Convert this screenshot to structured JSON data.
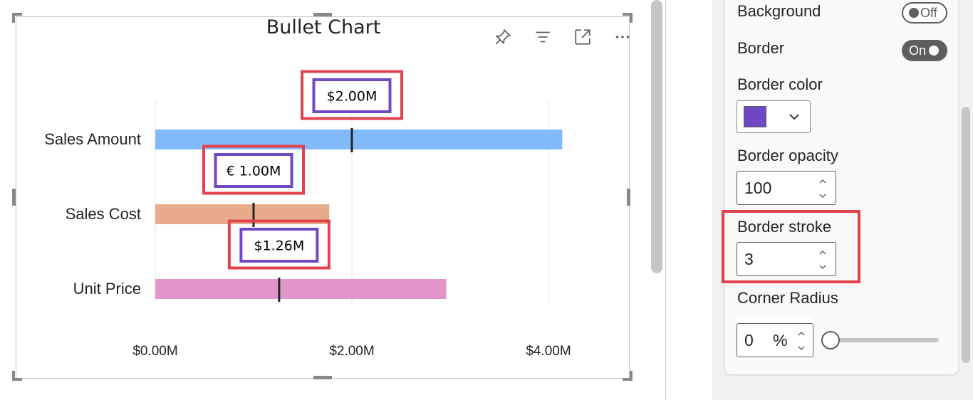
{
  "visual": {
    "title": "Bullet Chart",
    "header_icons": [
      {
        "name": "pin-icon"
      },
      {
        "name": "filter-icon"
      },
      {
        "name": "focus-mode-icon"
      },
      {
        "name": "more-options-icon"
      }
    ]
  },
  "chart_data": {
    "type": "bar",
    "orientation": "horizontal",
    "categories": [
      "Sales Amount",
      "Sales Cost",
      "Unit Price"
    ],
    "values": [
      4.14,
      1.77,
      2.96
    ],
    "targets": [
      2.0,
      1.0,
      1.26
    ],
    "target_labels": [
      "$2.00M",
      "€ 1.00M",
      "$1.26M"
    ],
    "bar_colors": [
      "#82b9f8",
      "#e8ab8c",
      "#e195c8"
    ],
    "x_ticks": [
      0,
      2,
      4
    ],
    "x_tick_labels": [
      "$0.00M",
      "$2.00M",
      "$4.00M"
    ],
    "xlim": [
      0,
      4.9
    ],
    "grid": true,
    "title": "Bullet Chart",
    "label_border_color": "#7148c4",
    "highlight_color": "#e1434e"
  },
  "format_pane": {
    "background": {
      "label": "Background",
      "toggle": "Off"
    },
    "border": {
      "label": "Border",
      "toggle": "On"
    },
    "border_color": {
      "label": "Border color",
      "value": "#7148c4"
    },
    "border_opacity": {
      "label": "Border opacity",
      "value": "100"
    },
    "border_stroke": {
      "label": "Border stroke",
      "value": "3"
    },
    "corner_radius": {
      "label": "Corner Radius",
      "value": "0",
      "unit": "%",
      "slider_fraction": 0
    }
  }
}
